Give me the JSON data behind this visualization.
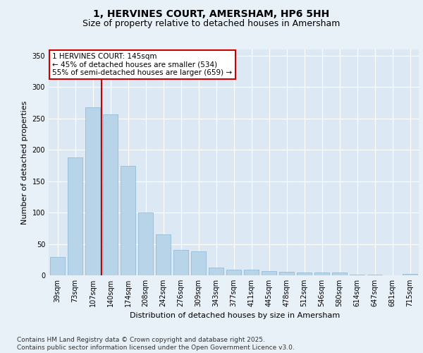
{
  "title1": "1, HERVINES COURT, AMERSHAM, HP6 5HH",
  "title2": "Size of property relative to detached houses in Amersham",
  "xlabel": "Distribution of detached houses by size in Amersham",
  "ylabel": "Number of detached properties",
  "categories": [
    "39sqm",
    "73sqm",
    "107sqm",
    "140sqm",
    "174sqm",
    "208sqm",
    "242sqm",
    "276sqm",
    "309sqm",
    "343sqm",
    "377sqm",
    "411sqm",
    "445sqm",
    "478sqm",
    "512sqm",
    "546sqm",
    "580sqm",
    "614sqm",
    "647sqm",
    "681sqm",
    "715sqm"
  ],
  "values": [
    29,
    188,
    268,
    257,
    174,
    100,
    65,
    40,
    38,
    12,
    9,
    9,
    7,
    6,
    5,
    4,
    5,
    1,
    1,
    0,
    2
  ],
  "bar_color": "#b8d4e8",
  "bar_edge_color": "#8ab4d4",
  "vline_color": "#cc0000",
  "vline_x_index": 3,
  "annotation_text": "1 HERVINES COURT: 145sqm\n← 45% of detached houses are smaller (534)\n55% of semi-detached houses are larger (659) →",
  "annotation_box_color": "#ffffff",
  "annotation_box_edge_color": "#cc0000",
  "ylim": [
    0,
    360
  ],
  "yticks": [
    0,
    50,
    100,
    150,
    200,
    250,
    300,
    350
  ],
  "bg_color": "#e8f0f8",
  "plot_bg_color": "#dce8f4",
  "grid_color": "#ffffff",
  "footer_text": "Contains HM Land Registry data © Crown copyright and database right 2025.\nContains public sector information licensed under the Open Government Licence v3.0.",
  "title1_fontsize": 10,
  "title2_fontsize": 9,
  "xlabel_fontsize": 8,
  "ylabel_fontsize": 8,
  "tick_fontsize": 7,
  "annotation_fontsize": 7.5,
  "footer_fontsize": 6.5
}
